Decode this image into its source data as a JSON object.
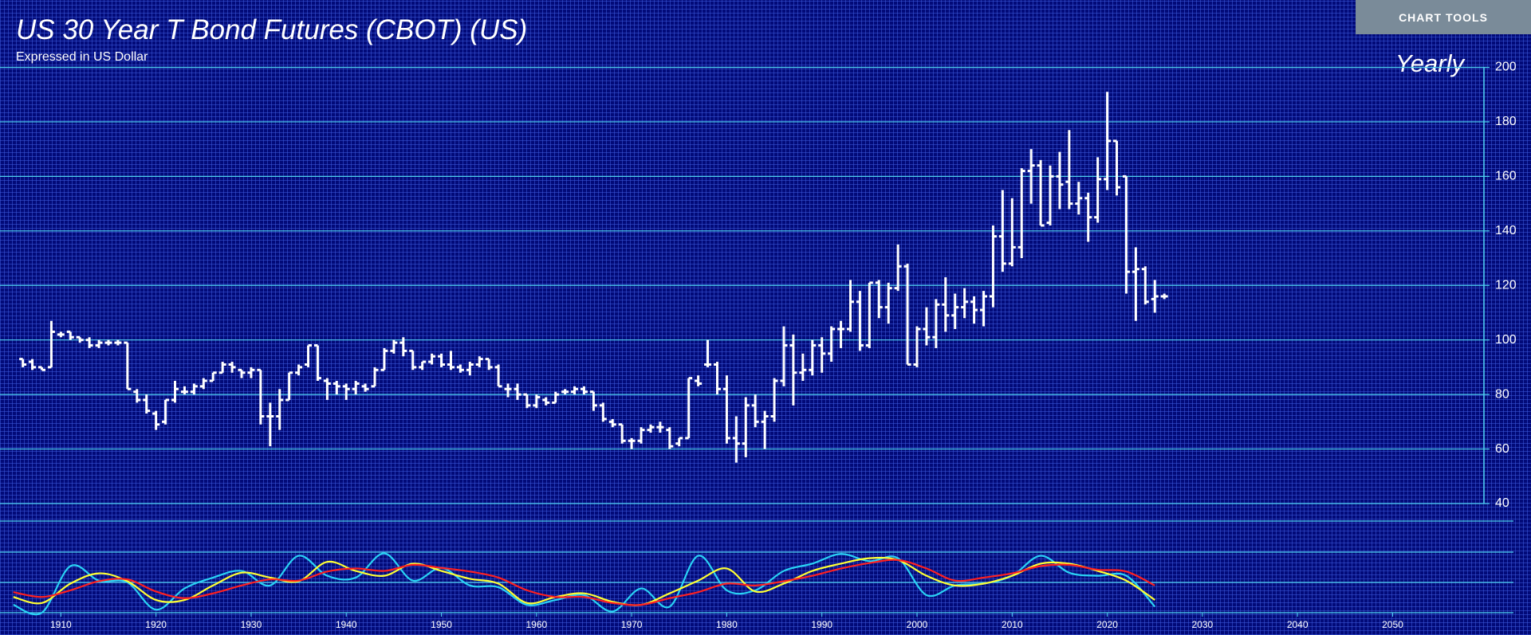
{
  "toolbar": {
    "button": "CHART TOOLS"
  },
  "chart_data": [
    {
      "type": "ohlc",
      "title": "US 30 Year T Bond Futures (CBOT) (US)",
      "subtitle": "Expressed in US Dollar",
      "period": "Yearly",
      "color": "#ffffff",
      "grid_color": "#4fd2f0",
      "x": [
        1906,
        1907,
        1908,
        1909,
        1910,
        1911,
        1912,
        1913,
        1914,
        1915,
        1916,
        1917,
        1918,
        1919,
        1920,
        1921,
        1922,
        1923,
        1924,
        1925,
        1926,
        1927,
        1928,
        1929,
        1930,
        1931,
        1932,
        1933,
        1934,
        1935,
        1936,
        1937,
        1938,
        1939,
        1940,
        1941,
        1942,
        1943,
        1944,
        1945,
        1946,
        1947,
        1948,
        1949,
        1950,
        1951,
        1952,
        1953,
        1954,
        1955,
        1956,
        1957,
        1958,
        1959,
        1960,
        1961,
        1962,
        1963,
        1964,
        1965,
        1966,
        1967,
        1968,
        1969,
        1970,
        1971,
        1972,
        1973,
        1974,
        1975,
        1976,
        1977,
        1978,
        1979,
        1980,
        1981,
        1982,
        1983,
        1984,
        1985,
        1986,
        1987,
        1988,
        1989,
        1990,
        1991,
        1992,
        1993,
        1994,
        1995,
        1996,
        1997,
        1998,
        1999,
        2000,
        2001,
        2002,
        2003,
        2004,
        2005,
        2006,
        2007,
        2008,
        2009,
        2010,
        2011,
        2012,
        2013,
        2014,
        2015,
        2016,
        2017,
        2018,
        2019,
        2020,
        2021,
        2022,
        2023,
        2024,
        2025,
        2026
      ],
      "open": [
        93,
        92,
        90,
        90,
        102,
        103,
        101,
        100,
        98,
        99,
        99,
        99,
        81,
        78,
        73,
        70,
        78,
        81,
        81,
        83,
        85,
        88,
        91,
        89,
        88,
        89,
        72,
        72,
        78,
        88,
        91,
        98,
        85,
        84,
        83,
        82,
        83,
        83,
        89,
        96,
        99,
        96,
        90,
        92,
        94,
        91,
        90,
        89,
        91,
        93,
        90,
        82,
        82,
        80,
        76,
        78,
        77,
        81,
        81,
        82,
        81,
        76,
        70,
        69,
        63,
        63,
        67,
        68,
        67,
        62,
        64,
        85,
        91,
        91,
        82,
        64,
        62,
        76,
        70,
        72,
        85,
        98,
        88,
        89,
        98,
        95,
        104,
        104,
        114,
        98,
        121,
        112,
        119,
        127,
        91,
        104,
        101,
        113,
        109,
        112,
        114,
        111,
        116,
        138,
        128,
        134,
        162,
        164,
        143,
        160,
        158,
        150,
        152,
        145,
        159,
        173,
        160,
        125,
        126,
        115,
        116
      ],
      "high": [
        93,
        93,
        90,
        107,
        103,
        103,
        101,
        101,
        100,
        100,
        100,
        99,
        82,
        80,
        74,
        78,
        85,
        83,
        84,
        86,
        88,
        92,
        92,
        89,
        90,
        89,
        77,
        82,
        88,
        91,
        98,
        98,
        86,
        85,
        84,
        85,
        84,
        90,
        97,
        100,
        101,
        96,
        92,
        95,
        95,
        96,
        91,
        92,
        94,
        93,
        91,
        84,
        84,
        80,
        80,
        79,
        81,
        82,
        83,
        83,
        81,
        77,
        71,
        69,
        64,
        68,
        69,
        70,
        68,
        64,
        86,
        87,
        100,
        92,
        87,
        72,
        79,
        80,
        74,
        86,
        105,
        102,
        95,
        100,
        101,
        105,
        107,
        122,
        118,
        121,
        122,
        121,
        135,
        128,
        105,
        112,
        115,
        123,
        117,
        119,
        116,
        118,
        142,
        155,
        152,
        163,
        170,
        166,
        164,
        169,
        177,
        158,
        154,
        167,
        191,
        173,
        160,
        134,
        127,
        122,
        117
      ],
      "low": [
        90,
        89,
        89,
        90,
        101,
        100,
        99,
        97,
        97,
        98,
        98,
        82,
        77,
        73,
        67,
        69,
        77,
        80,
        80,
        82,
        85,
        88,
        88,
        86,
        86,
        69,
        61,
        67,
        78,
        87,
        90,
        85,
        78,
        80,
        78,
        80,
        81,
        83,
        89,
        95,
        94,
        89,
        89,
        91,
        90,
        89,
        88,
        87,
        90,
        89,
        83,
        79,
        78,
        75,
        75,
        76,
        77,
        80,
        80,
        80,
        74,
        70,
        68,
        62,
        60,
        62,
        66,
        66,
        60,
        61,
        64,
        83,
        90,
        80,
        62,
        55,
        57,
        68,
        60,
        70,
        83,
        76,
        85,
        87,
        88,
        92,
        97,
        103,
        96,
        97,
        108,
        106,
        118,
        91,
        90,
        98,
        97,
        103,
        104,
        108,
        106,
        105,
        112,
        125,
        127,
        130,
        150,
        142,
        142,
        148,
        148,
        146,
        136,
        143,
        155,
        153,
        117,
        107,
        113,
        110,
        115
      ],
      "close": [
        91,
        90,
        89,
        103,
        102,
        101,
        100,
        98,
        99,
        99,
        99,
        82,
        78,
        74,
        69,
        78,
        82,
        81,
        83,
        85,
        88,
        91,
        90,
        88,
        89,
        72,
        72,
        78,
        88,
        90,
        98,
        86,
        84,
        83,
        82,
        84,
        82,
        89,
        96,
        99,
        96,
        90,
        92,
        94,
        91,
        90,
        89,
        91,
        93,
        90,
        83,
        82,
        80,
        76,
        79,
        77,
        80,
        81,
        82,
        81,
        76,
        71,
        69,
        63,
        63,
        67,
        68,
        68,
        61,
        64,
        86,
        84,
        91,
        82,
        64,
        62,
        76,
        70,
        72,
        85,
        98,
        88,
        89,
        98,
        95,
        104,
        104,
        114,
        98,
        121,
        112,
        119,
        127,
        91,
        104,
        101,
        113,
        109,
        112,
        114,
        111,
        116,
        138,
        128,
        134,
        162,
        164,
        142,
        160,
        157,
        150,
        152,
        145,
        159,
        173,
        156,
        125,
        126,
        114,
        116,
        116
      ],
      "xlim": [
        1903.6,
        2059.6
      ],
      "ylim": [
        40,
        200
      ],
      "yticks": [
        40,
        60,
        80,
        100,
        120,
        140,
        160,
        180,
        200
      ],
      "grid": true
    },
    {
      "type": "line",
      "x": [
        1905,
        1908,
        1911,
        1914,
        1917,
        1920,
        1923,
        1926,
        1929,
        1932,
        1935,
        1938,
        1941,
        1944,
        1947,
        1950,
        1953,
        1956,
        1959,
        1962,
        1965,
        1968,
        1971,
        1974,
        1977,
        1980,
        1983,
        1986,
        1989,
        1992,
        1995,
        1998,
        2001,
        2004,
        2007,
        2010,
        2013,
        2016,
        2019,
        2022,
        2025
      ],
      "series": [
        {
          "color": "#29d3f5",
          "values": [
            13,
            0,
            77,
            53,
            50,
            5,
            40,
            58,
            69,
            45,
            94,
            61,
            58,
            98,
            53,
            74,
            45,
            42,
            13,
            21,
            29,
            2,
            40,
            10,
            94,
            37,
            37,
            69,
            81,
            97,
            85,
            90,
            29,
            45,
            48,
            61,
            94,
            66,
            61,
            61,
            10
          ]
        },
        {
          "color": "#ffff33",
          "values": [
            26,
            16,
            48,
            65,
            52,
            21,
            21,
            45,
            66,
            58,
            52,
            84,
            69,
            61,
            81,
            69,
            56,
            48,
            16,
            26,
            32,
            18,
            13,
            32,
            53,
            73,
            35,
            48,
            69,
            81,
            90,
            87,
            61,
            45,
            48,
            61,
            81,
            81,
            69,
            53,
            21
          ]
        },
        {
          "color": "#ff2020",
          "values": [
            34,
            26,
            37,
            52,
            55,
            35,
            24,
            32,
            45,
            55,
            53,
            68,
            73,
            69,
            79,
            74,
            68,
            58,
            37,
            26,
            26,
            16,
            13,
            24,
            34,
            48,
            45,
            52,
            61,
            73,
            82,
            87,
            73,
            53,
            58,
            65,
            77,
            79,
            71,
            68,
            45
          ]
        }
      ],
      "xlim": [
        1903.6,
        2059.6
      ],
      "ylim": [
        0,
        100
      ],
      "xticks": [
        1910,
        1920,
        1930,
        1940,
        1950,
        1960,
        1970,
        1980,
        1990,
        2000,
        2010,
        2020,
        2030,
        2040,
        2050
      ],
      "grid_color": "#4fd2f0"
    }
  ]
}
